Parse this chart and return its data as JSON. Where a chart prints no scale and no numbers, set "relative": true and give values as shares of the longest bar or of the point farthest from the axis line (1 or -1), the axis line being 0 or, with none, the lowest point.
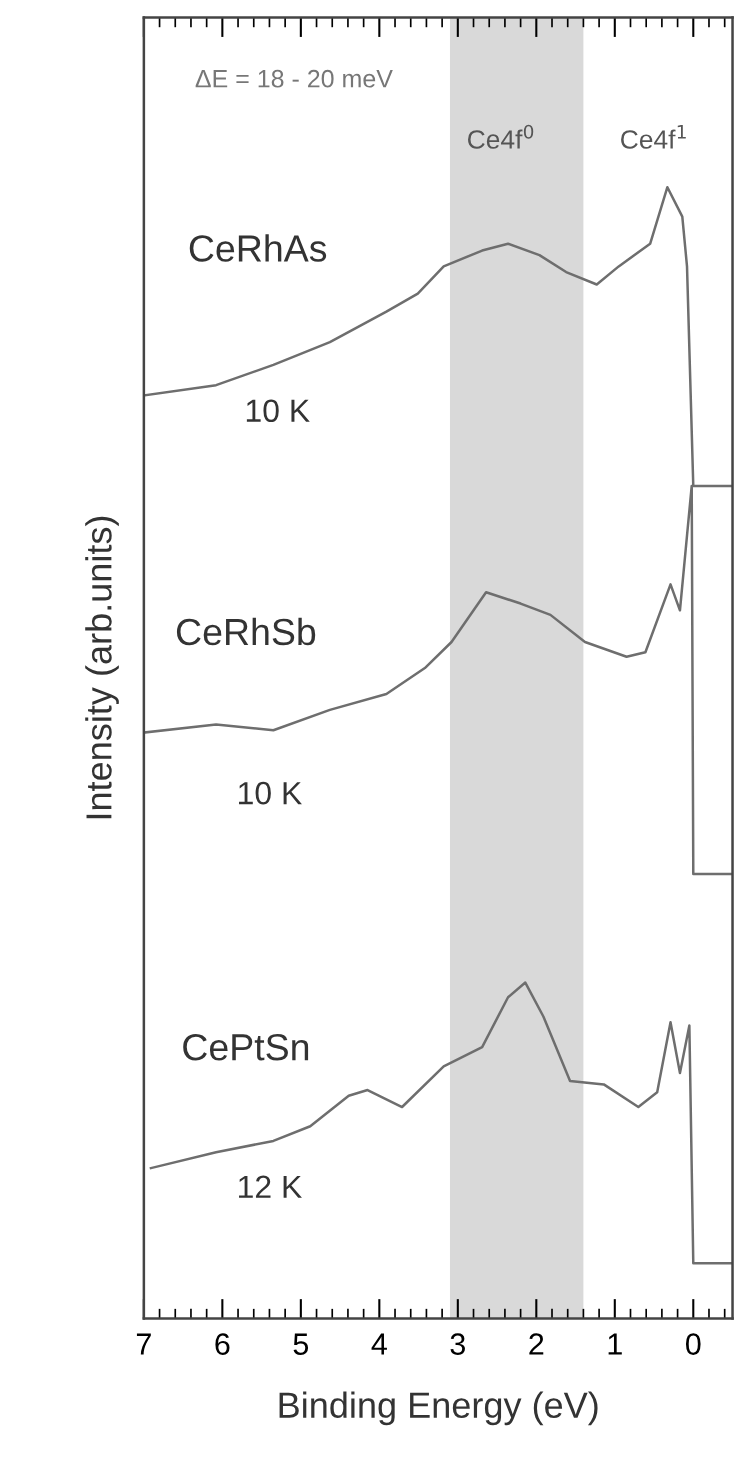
{
  "chart_data": {
    "type": "line",
    "relative": true,
    "xlabel": "Binding Energy (eV)",
    "ylabel": "Intensity (arb.units)",
    "xlim": [
      7,
      -0.5
    ],
    "xticks": [
      7,
      6,
      5,
      4,
      3,
      2,
      1,
      0
    ],
    "tick_labels": "x",
    "grid": false,
    "legend": false,
    "marker": "none",
    "line_style": "solid",
    "series": [
      {
        "name": "CeRhAs",
        "color": "#6e6e6e",
        "x": [
          7.0,
          6.08,
          5.35,
          4.63,
          3.91,
          3.51,
          3.18,
          2.69,
          2.36,
          1.96,
          1.62,
          1.23,
          0.95,
          0.55,
          0.33,
          0.14,
          0.08,
          0.0,
          -0.5
        ],
        "values": [
          0.816,
          0.825,
          0.843,
          0.863,
          0.89,
          0.906,
          0.93,
          0.944,
          0.95,
          0.94,
          0.925,
          0.914,
          0.93,
          0.95,
          1.0,
          0.974,
          0.93,
          0.736,
          0.736
        ]
      },
      {
        "name": "CeRhSb",
        "color": "#6e6e6e",
        "x": [
          7.0,
          6.08,
          5.35,
          4.63,
          3.91,
          3.42,
          3.08,
          2.64,
          2.2,
          1.82,
          1.38,
          0.85,
          0.61,
          0.29,
          0.17,
          0.08,
          0.02,
          0.0,
          -0.5
        ],
        "values": [
          0.518,
          0.525,
          0.52,
          0.538,
          0.552,
          0.575,
          0.598,
          0.642,
          0.632,
          0.622,
          0.598,
          0.585,
          0.589,
          0.649,
          0.626,
          0.692,
          0.736,
          0.393,
          0.393
        ]
      },
      {
        "name": "CePtSn",
        "color": "#6e6e6e",
        "x": [
          6.91,
          6.08,
          5.35,
          4.88,
          4.39,
          4.15,
          3.71,
          3.18,
          2.69,
          2.36,
          2.14,
          1.91,
          1.57,
          1.14,
          0.7,
          0.46,
          0.29,
          0.17,
          0.05,
          0.0,
          -0.5
        ],
        "values": [
          0.133,
          0.147,
          0.157,
          0.17,
          0.197,
          0.202,
          0.187,
          0.223,
          0.24,
          0.284,
          0.297,
          0.267,
          0.21,
          0.207,
          0.187,
          0.2,
          0.262,
          0.217,
          0.259,
          0.049,
          0.049
        ]
      }
    ],
    "bands": [
      {
        "axis": "x",
        "from": 3.1,
        "to": 1.4,
        "color": "#d9d9d9"
      }
    ],
    "annotations": [
      "ΔE = 18 - 20 meV",
      "Ce4f$^{0}$",
      "Ce4f$^{1}$",
      "10 K",
      "10 K",
      "12 K"
    ]
  }
}
